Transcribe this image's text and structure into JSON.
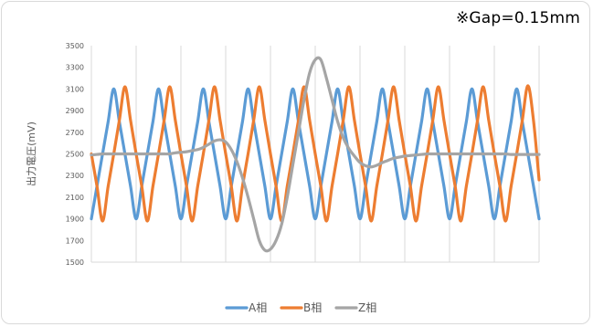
{
  "annotation": "※Gap=0.15mm",
  "chart_data": {
    "type": "line",
    "title": "",
    "xlabel": "",
    "ylabel": "出力電圧(mV)",
    "ylim": [
      1500,
      3500
    ],
    "yticks": [
      1500,
      1700,
      1900,
      2100,
      2300,
      2500,
      2700,
      2900,
      3100,
      3300,
      3500
    ],
    "grid": "vertical",
    "legend": "bottom",
    "x": [
      0,
      0.25,
      0.5,
      0.75,
      1,
      1.25,
      1.5,
      1.75,
      2,
      2.25,
      2.5,
      2.75,
      3,
      3.25,
      3.5,
      3.75,
      4,
      4.25,
      4.5,
      4.75,
      5,
      5.25,
      5.5,
      5.75,
      6,
      6.25,
      6.5,
      6.75,
      7,
      7.25,
      7.5,
      7.75,
      8,
      8.25,
      8.5,
      8.75,
      9,
      9.25,
      9.5,
      9.75,
      10,
      10.25,
      10.5,
      10.75,
      11,
      11.25,
      11.5,
      11.75,
      12,
      12.25,
      12.5,
      12.75,
      13,
      13.25,
      13.5,
      13.75,
      14,
      14.25,
      14.5,
      14.75,
      15,
      15.25,
      15.5,
      15.75,
      16,
      16.25,
      16.5,
      16.75,
      17,
      17.25,
      17.5,
      17.75,
      18,
      18.25,
      18.5,
      18.75,
      19,
      19.25,
      19.5,
      19.75,
      20
    ],
    "series": [
      {
        "name": "A相",
        "color": "#5b9bd5",
        "values": [
          1900,
          2202,
          2500,
          2798,
          3100,
          2798,
          2500,
          2202,
          1900,
          2202,
          2500,
          2798,
          3100,
          2798,
          2500,
          2202,
          1900,
          2202,
          2500,
          2798,
          3100,
          2798,
          2500,
          2202,
          1900,
          2202,
          2500,
          2798,
          3100,
          2798,
          2500,
          2202,
          1900,
          2202,
          2500,
          2798,
          3100,
          2798,
          2500,
          2202,
          1900,
          2202,
          2500,
          2798,
          3100,
          2798,
          2500,
          2202,
          1900,
          2202,
          2500,
          2798,
          3100,
          2798,
          2500,
          2202,
          1900,
          2202,
          2500,
          2798,
          3100,
          2798,
          2500,
          2202,
          1900,
          2202,
          2500,
          2798,
          3100,
          2798,
          2500,
          2202,
          1900,
          2202,
          2500,
          2798,
          3100,
          2798,
          2500,
          2202,
          1900
        ]
      },
      {
        "name": "B相",
        "color": "#ed7d31",
        "values": [
          2500,
          2202,
          1880,
          2202,
          2500,
          2810,
          3120,
          2810,
          2500,
          2202,
          1880,
          2202,
          2500,
          2810,
          3120,
          2810,
          2500,
          2202,
          1880,
          2202,
          2500,
          2810,
          3120,
          2810,
          2500,
          2202,
          1880,
          2202,
          2500,
          2810,
          3120,
          2810,
          2500,
          2202,
          1880,
          2202,
          2500,
          2810,
          3120,
          2810,
          2500,
          2202,
          1880,
          2202,
          2500,
          2810,
          3120,
          2810,
          2500,
          2202,
          1880,
          2202,
          2500,
          2810,
          3120,
          2810,
          2500,
          2202,
          1880,
          2202,
          2500,
          2810,
          3120,
          2810,
          2500,
          2202,
          1880,
          2202,
          2500,
          2810,
          3120,
          2810,
          2500,
          2202,
          1880,
          2202,
          2500,
          2810,
          3130,
          2810,
          2260
        ]
      },
      {
        "name": "Z相",
        "color": "#a5a5a5",
        "values": [
          2490,
          2495,
          2500,
          2500,
          2500,
          2500,
          2500,
          2500,
          2500,
          2500,
          2500,
          2500,
          2500,
          2500,
          2500,
          2510,
          2515,
          2520,
          2530,
          2540,
          2560,
          2590,
          2620,
          2630,
          2610,
          2540,
          2430,
          2280,
          2100,
          1900,
          1700,
          1610,
          1620,
          1700,
          1850,
          2100,
          2400,
          2700,
          3000,
          3250,
          3370,
          3370,
          3200,
          3000,
          2800,
          2650,
          2550,
          2480,
          2420,
          2390,
          2380,
          2395,
          2420,
          2440,
          2460,
          2470,
          2480,
          2485,
          2490,
          2495,
          2500,
          2500,
          2500,
          2500,
          2500,
          2500,
          2500,
          2500,
          2500,
          2500,
          2500,
          2500,
          2500,
          2500,
          2500,
          2495,
          2495,
          2495,
          2495,
          2495,
          2495
        ]
      }
    ]
  }
}
